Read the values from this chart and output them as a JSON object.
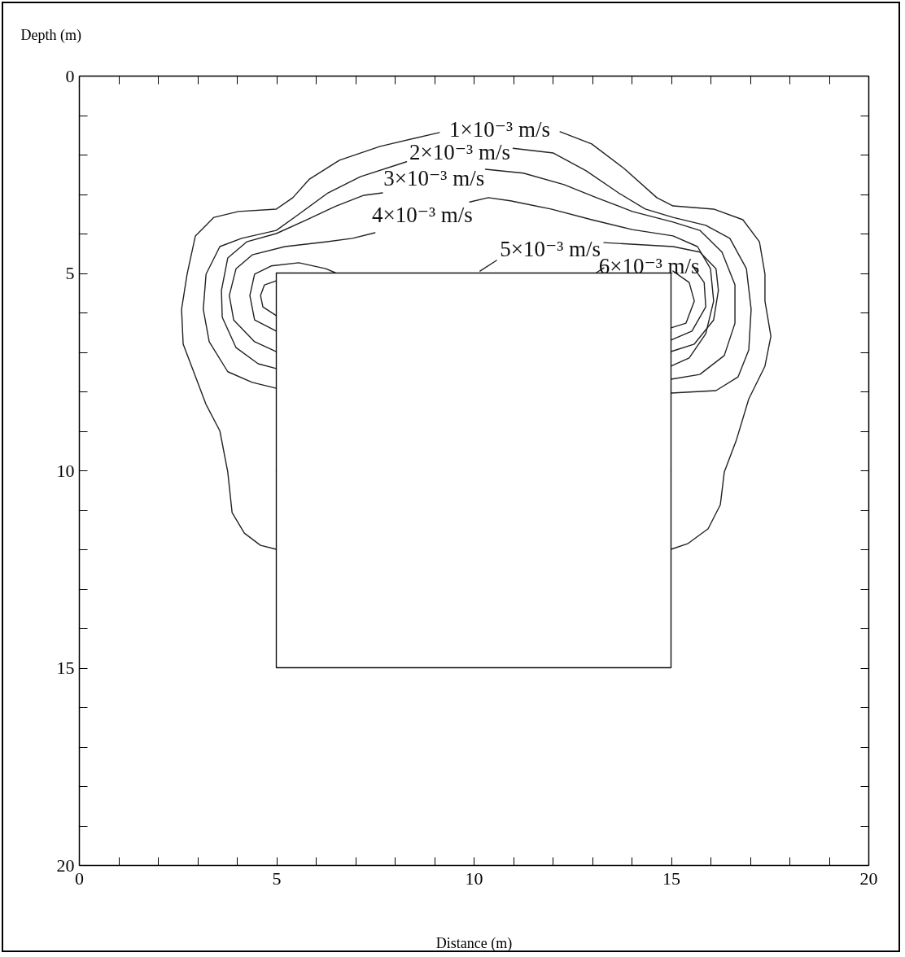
{
  "chart_data": {
    "type": "line",
    "xlabel": "Distance (m)",
    "ylabel": "Depth (m)",
    "xlim": [
      0,
      20
    ],
    "ylim": [
      20,
      0
    ],
    "xticks": [
      0,
      {
        "value": 1,
        "label": null
      },
      {
        "value": 2,
        "label": null
      },
      {
        "value": 3,
        "label": null
      },
      {
        "value": 4,
        "label": null
      },
      5,
      {
        "value": 6,
        "label": null
      },
      {
        "value": 7,
        "label": null
      },
      {
        "value": 8,
        "label": null
      },
      {
        "value": 9,
        "label": null
      },
      10,
      {
        "value": 11,
        "label": null
      },
      {
        "value": 12,
        "label": null
      },
      {
        "value": 13,
        "label": null
      },
      {
        "value": 14,
        "label": null
      },
      15,
      {
        "value": 16,
        "label": null
      },
      {
        "value": 17,
        "label": null
      },
      {
        "value": 18,
        "label": null
      },
      {
        "value": 19,
        "label": null
      },
      20
    ],
    "yticks": [
      0,
      {
        "value": 1,
        "label": null
      },
      {
        "value": 2,
        "label": null
      },
      {
        "value": 3,
        "label": null
      },
      {
        "value": 4,
        "label": null
      },
      5,
      {
        "value": 6,
        "label": null
      },
      {
        "value": 7,
        "label": null
      },
      {
        "value": 8,
        "label": null
      },
      {
        "value": 9,
        "label": null
      },
      10,
      {
        "value": 11,
        "label": null
      },
      {
        "value": 12,
        "label": null
      },
      {
        "value": 13,
        "label": null
      },
      {
        "value": 14,
        "label": null
      },
      15,
      {
        "value": 16,
        "label": null
      },
      {
        "value": 17,
        "label": null
      },
      {
        "value": 18,
        "label": null
      },
      {
        "value": 19,
        "label": null
      },
      20
    ],
    "grid": false,
    "marker": "none",
    "line_style": "solid",
    "series": [
      {
        "name": "1×10⁻³ m/s",
        "color": "#222222",
        "type": "line",
        "x": [
          5,
          4.6,
          4.19,
          3.88,
          3.77,
          3.57,
          3.22,
          2.64,
          2.6,
          2.74,
          2.95,
          3.42,
          4.04,
          5.0,
          5.42,
          5.84,
          6.6,
          7.63,
          9.13,
          null,
          12.19,
          12.99,
          13.81,
          14.64,
          15.05,
          16.08,
          16.82,
          17.24,
          17.38,
          17.38,
          17.53,
          17.38,
          16.97,
          16.66,
          16.35,
          16.25,
          15.94,
          15.42,
          15
        ],
        "values": [
          12.0,
          11.9,
          11.59,
          11.07,
          10.04,
          9.0,
          8.33,
          6.8,
          5.92,
          5.03,
          4.06,
          3.59,
          3.44,
          3.38,
          3.09,
          2.62,
          2.14,
          1.79,
          1.44,
          null,
          1.42,
          1.73,
          2.35,
          3.09,
          3.3,
          3.38,
          3.65,
          4.21,
          5.03,
          5.71,
          6.6,
          7.36,
          8.19,
          9.22,
          10.04,
          10.87,
          11.48,
          11.86,
          12.0
        ]
      },
      {
        "name": "2×10⁻³ m/s",
        "color": "#222222",
        "type": "line",
        "x": [
          5,
          4.39,
          3.77,
          3.3,
          3.15,
          3.22,
          3.57,
          4.12,
          5.0,
          5.57,
          6.31,
          7.13,
          8.3,
          null,
          11.0,
          12.02,
          12.85,
          13.67,
          14.35,
          15.05,
          15.88,
          16.49,
          16.91,
          17.03,
          16.97,
          16.7,
          16.14,
          15
        ],
        "values": [
          7.92,
          7.77,
          7.5,
          6.74,
          5.92,
          5.03,
          4.33,
          4.12,
          3.92,
          3.51,
          2.97,
          2.56,
          2.18,
          null,
          1.84,
          1.96,
          2.41,
          2.97,
          3.38,
          3.59,
          3.79,
          4.12,
          4.89,
          5.92,
          6.95,
          7.63,
          7.98,
          8.04
        ]
      },
      {
        "name": "3×10⁻³ m/s",
        "color": "#222222",
        "type": "line",
        "x": [
          5,
          4.54,
          3.98,
          3.63,
          3.61,
          3.77,
          4.25,
          5.0,
          5.77,
          6.52,
          7.22,
          7.69,
          null,
          10.3,
          11.26,
          12.29,
          13.11,
          14.02,
          15.05,
          15.73,
          16.29,
          16.62,
          16.62,
          16.35,
          15.73,
          15
        ],
        "values": [
          7.42,
          7.3,
          6.89,
          6.12,
          5.44,
          4.62,
          4.21,
          4.0,
          3.65,
          3.3,
          3.03,
          2.97,
          null,
          2.37,
          2.47,
          2.76,
          3.09,
          3.44,
          3.71,
          3.92,
          4.47,
          5.3,
          6.27,
          7.09,
          7.57,
          7.69
        ]
      },
      {
        "name": "4×10⁻³ m/s",
        "color": "#222222",
        "type": "line",
        "x": [
          5,
          4.45,
          3.92,
          3.81,
          3.98,
          4.39,
          5.22,
          6.25,
          6.93,
          7.5,
          null,
          9.9,
          10.37,
          10.93,
          11.96,
          12.99,
          14.02,
          15.05,
          15.67,
          16.0,
          16.08,
          15.88,
          15.46,
          15
        ],
        "values": [
          6.99,
          6.74,
          6.19,
          5.57,
          4.89,
          4.54,
          4.33,
          4.21,
          4.12,
          3.98,
          null,
          3.2,
          3.09,
          3.17,
          3.38,
          3.65,
          3.9,
          4.06,
          4.33,
          4.89,
          5.71,
          6.54,
          7.15,
          7.36
        ]
      },
      {
        "name": "5×10⁻³ m/s",
        "color": "#222222",
        "type": "line",
        "x": [
          5,
          4.45,
          4.33,
          4.45,
          4.87,
          5.57,
          6.25,
          6.49,
          null,
          10.16,
          10.58,
          null,
          13.3,
          15.05,
          15.73,
          16.14,
          16.2,
          16.08,
          15.59,
          15
        ],
        "values": [
          6.47,
          6.19,
          5.57,
          5.03,
          4.82,
          4.74,
          4.89,
          4.99,
          null,
          4.95,
          4.68,
          null,
          4.23,
          4.33,
          4.47,
          4.89,
          5.44,
          6.19,
          6.8,
          6.99
        ]
      },
      {
        "name": "6×10⁻³ m/s",
        "color": "#222222",
        "type": "line",
        "x": [
          5,
          4.66,
          4.6,
          4.7,
          5,
          null,
          15.05,
          15.46,
          15.59,
          15.38,
          15,
          null,
          13.11,
          13.3,
          null,
          15.59,
          15.84,
          15.88,
          15.53,
          15
        ],
        "values": [
          6.08,
          5.86,
          5.57,
          5.3,
          5.2,
          null,
          4.95,
          5.24,
          5.71,
          6.27,
          6.39,
          null,
          4.99,
          4.87,
          null,
          4.89,
          5.24,
          5.86,
          6.47,
          6.7
        ]
      },
      {
        "color": "#111111",
        "x": [
          5,
          5,
          15,
          15,
          null,
          5,
          5,
          15,
          15
        ],
        "values": [
          10,
          5,
          5,
          10,
          null,
          10,
          15,
          15,
          10
        ]
      }
    ]
  }
}
